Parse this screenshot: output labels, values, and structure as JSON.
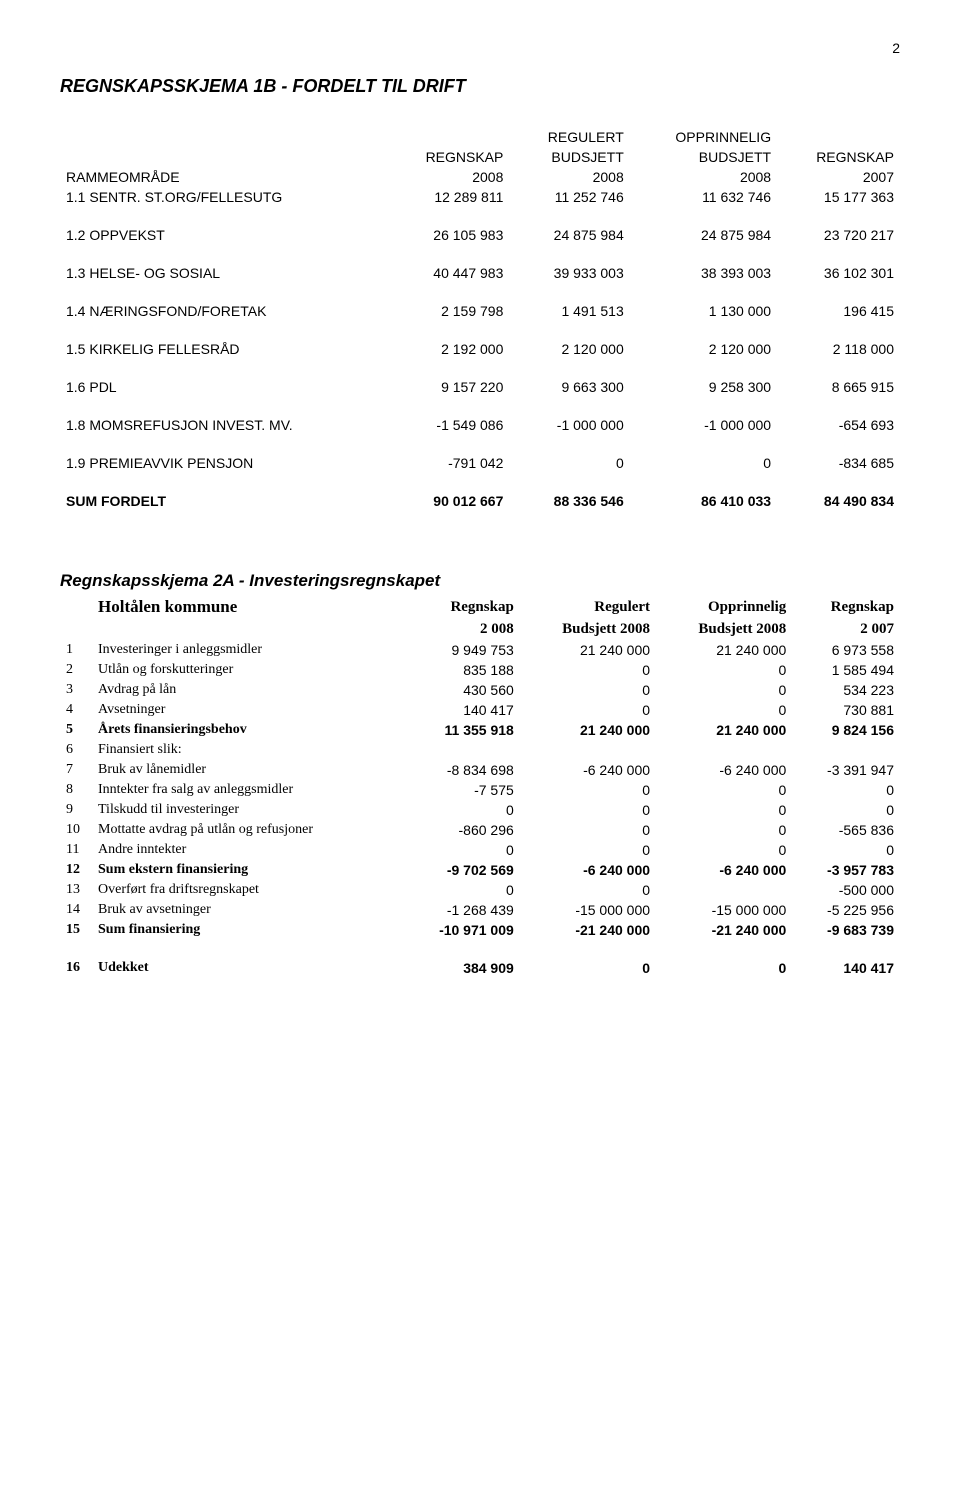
{
  "page_number": "2",
  "section1": {
    "title": "REGNSKAPSSKJEMA 1B - FORDELT TIL DRIFT",
    "row_header_label": "RAMMEOMRÅDE",
    "headers": {
      "c1a": "REGNSKAP",
      "c1b": "2008",
      "c2a": "REGULERT",
      "c2b": "BUDSJETT",
      "c2c": "2008",
      "c3a": "OPPRINNELIG",
      "c3b": "BUDSJETT",
      "c3c": "2008",
      "c4a": "REGNSKAP",
      "c4b": "2007"
    },
    "rows": [
      {
        "label": "1.1 SENTR. ST.ORG/FELLESUTG",
        "v": [
          "12 289 811",
          "11 252 746",
          "11 632 746",
          "15 177 363"
        ]
      },
      {
        "label": "1.2 OPPVEKST",
        "v": [
          "26 105 983",
          "24 875 984",
          "24 875 984",
          "23 720 217"
        ]
      },
      {
        "label": "1.3 HELSE- OG SOSIAL",
        "v": [
          "40 447 983",
          "39 933 003",
          "38 393 003",
          "36 102 301"
        ]
      },
      {
        "label": "1.4 NÆRINGSFOND/FORETAK",
        "v": [
          "2 159 798",
          "1 491 513",
          "1 130 000",
          "196 415"
        ]
      },
      {
        "label": "1.5 KIRKELIG FELLESRÅD",
        "v": [
          "2 192 000",
          "2 120 000",
          "2 120 000",
          "2 118 000"
        ]
      },
      {
        "label": "1.6 PDL",
        "v": [
          "9 157 220",
          "9 663 300",
          "9 258 300",
          "8 665 915"
        ]
      },
      {
        "label": "1.8 MOMSREFUSJON INVEST. MV.",
        "v": [
          "-1 549 086",
          "-1 000 000",
          "-1 000 000",
          "-654 693"
        ]
      },
      {
        "label": "1.9 PREMIEAVVIK PENSJON",
        "v": [
          "-791 042",
          "0",
          "0",
          "-834 685"
        ]
      }
    ],
    "sum": {
      "label": "SUM FORDELT",
      "v": [
        "90 012 667",
        "88 336 546",
        "86 410 033",
        "84 490 834"
      ]
    }
  },
  "section2": {
    "title": "Regnskapsskjema 2A - Investeringsregnskapet",
    "holtalen": "Holtålen kommune",
    "headers": {
      "c1a": "Regnskap",
      "c1b": "2 008",
      "c2a": "Regulert",
      "c2b": "Budsjett 2008",
      "c3a": "Opprinnelig",
      "c3b": "Budsjett 2008",
      "c4a": "Regnskap",
      "c4b": "2 007"
    },
    "rows": [
      {
        "n": "1",
        "label": "Investeringer i anleggsmidler",
        "v": [
          "9 949 753",
          "21 240 000",
          "21 240 000",
          "6 973 558"
        ],
        "bold": false
      },
      {
        "n": "2",
        "label": "Utlån og forskutteringer",
        "v": [
          "835 188",
          "0",
          "0",
          "1 585 494"
        ],
        "bold": false
      },
      {
        "n": "3",
        "label": "Avdrag på lån",
        "v": [
          "430 560",
          "0",
          "0",
          "534 223"
        ],
        "bold": false
      },
      {
        "n": "4",
        "label": "Avsetninger",
        "v": [
          "140 417",
          "0",
          "0",
          "730 881"
        ],
        "bold": false
      },
      {
        "n": "5",
        "label": "Årets finansieringsbehov",
        "v": [
          "11 355 918",
          "21 240 000",
          "21 240 000",
          "9 824 156"
        ],
        "bold": true
      },
      {
        "n": "6",
        "label": "Finansiert slik:",
        "v": [
          "",
          "",
          "",
          ""
        ],
        "bold": false
      },
      {
        "n": "7",
        "label": "Bruk av lånemidler",
        "v": [
          "-8 834 698",
          "-6 240 000",
          "-6 240 000",
          "-3 391 947"
        ],
        "bold": false
      },
      {
        "n": "8",
        "label": "Inntekter fra salg av anleggsmidler",
        "v": [
          "-7 575",
          "0",
          "0",
          "0"
        ],
        "bold": false
      },
      {
        "n": "9",
        "label": "Tilskudd til investeringer",
        "v": [
          "0",
          "0",
          "0",
          "0"
        ],
        "bold": false
      },
      {
        "n": "10",
        "label": "Mottatte avdrag på utlån og refusjoner",
        "v": [
          "-860 296",
          "0",
          "0",
          "-565 836"
        ],
        "bold": false
      },
      {
        "n": "11",
        "label": "Andre inntekter",
        "v": [
          "0",
          "0",
          "0",
          "0"
        ],
        "bold": false
      },
      {
        "n": "12",
        "label": "Sum ekstern finansiering",
        "v": [
          "-9 702 569",
          "-6 240 000",
          "-6 240 000",
          "-3 957 783"
        ],
        "bold": true
      },
      {
        "n": "13",
        "label": "Overført fra driftsregnskapet",
        "v": [
          "0",
          "0",
          "",
          "-500 000"
        ],
        "bold": false
      },
      {
        "n": "14",
        "label": "Bruk av avsetninger",
        "v": [
          "-1 268 439",
          "-15 000 000",
          "-15 000 000",
          "-5 225 956"
        ],
        "bold": false
      },
      {
        "n": "15",
        "label": "Sum finansiering",
        "v": [
          "-10 971 009",
          "-21 240 000",
          "-21 240 000",
          "-9 683 739"
        ],
        "bold": true
      }
    ],
    "udekket": {
      "n": "16",
      "label": "Udekket",
      "v": [
        "384 909",
        "0",
        "0",
        "140 417"
      ]
    }
  }
}
